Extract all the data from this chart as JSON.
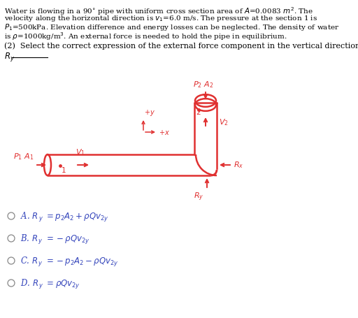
{
  "pipe_color": "#e03030",
  "answer_color": "#3344bb",
  "bg_color": "#ffffff",
  "text_color": "#000000",
  "fig_width": 5.12,
  "fig_height": 4.56,
  "dpi": 100,
  "text_lines": [
    "Water is flowing in a 90$^{\\circ}$ pipe with uniform cross section area of $A$=0.0083 $m^2$. The",
    "velocity along the horizontal direction is $v_1$=6.0 m/s. The pressure at the section 1 is",
    "$P_1$=500kPa. Elevation difference and energy losses can be neglected. The density of water",
    "is $\\rho$=1000kg/m$^3$. An external force is needed to hold the pipe in equilibrium."
  ],
  "question_line": "(2)  Select the correct expression of the external force component in the vertical direction",
  "ry_blank_label": "$R_y$",
  "options": [
    "A. $R_{y}$ $=p_{2}A_{2}+\\rho Qv_{2y}$",
    "B. $R_{y}$ $= -\\rho Qv_{2y}$",
    "C. $R_{y}$ $= -p_{2}A_{2}-\\rho Qv_{2y}$",
    "D. $R_{y}$ $=\\rho Qv_{2y}$"
  ],
  "pipe": {
    "hx1": 68,
    "hx2": 310,
    "hy1": 222,
    "hy2": 252,
    "vx1": 278,
    "vx2": 310,
    "vy1": 148
  }
}
